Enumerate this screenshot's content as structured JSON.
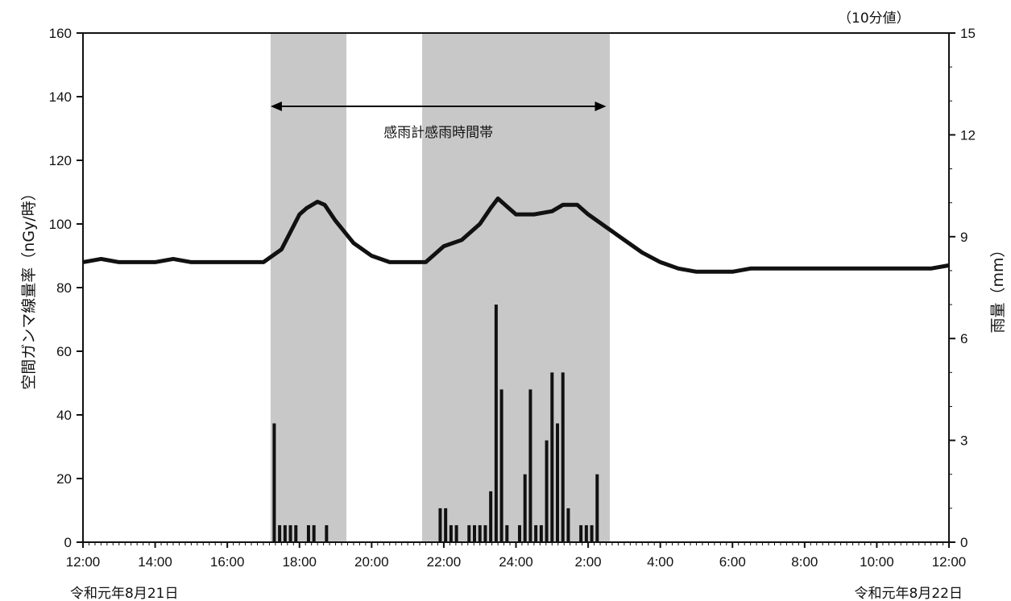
{
  "chart_data": {
    "type": "bar+line",
    "unit_note": "（10分値）",
    "ylabel_left": "空間ガンマ線量率（nGy/時）",
    "ylabel_right": "雨量（mm）",
    "left_axis": {
      "min": 0,
      "max": 160,
      "ticks": [
        "0",
        "20",
        "40",
        "60",
        "80",
        "100",
        "120",
        "140",
        "160"
      ]
    },
    "right_axis": {
      "min": 0,
      "max": 15,
      "ticks": [
        "0",
        "3",
        "6",
        "9",
        "12",
        "15"
      ]
    },
    "x_axis": {
      "start_hour": 12,
      "end_hour": 36,
      "tick_labels": [
        "12:00",
        "14:00",
        "16:00",
        "18:00",
        "20:00",
        "22:00",
        "24:00",
        "2:00",
        "4:00",
        "6:00",
        "8:00",
        "10:00",
        "12:00"
      ],
      "date_start": "令和元年8月21日",
      "date_end": "令和元年8月22日"
    },
    "annotation": {
      "text": "感雨計感雨時間帯",
      "from_hour": 17.2,
      "to_hour": 26.5
    },
    "shaded_bands": [
      {
        "from_hour": 17.2,
        "to_hour": 19.3
      },
      {
        "from_hour": 21.4,
        "to_hour": 26.6
      }
    ],
    "line_series": {
      "x_hours": [
        12,
        12.5,
        13,
        13.5,
        14,
        14.5,
        15,
        15.5,
        16,
        16.5,
        17,
        17.5,
        18,
        18.2,
        18.5,
        18.7,
        19,
        19.5,
        20,
        20.5,
        21,
        21.5,
        22,
        22.5,
        23,
        23.3,
        23.5,
        23.8,
        24,
        24.5,
        25,
        25.3,
        25.7,
        26,
        26.5,
        27,
        27.5,
        28,
        28.5,
        29,
        29.5,
        30,
        30.5,
        31,
        31.5,
        32,
        32.5,
        33,
        33.5,
        34,
        34.5,
        35,
        35.5,
        36
      ],
      "values": [
        88,
        89,
        88,
        88,
        88,
        89,
        88,
        88,
        88,
        88,
        88,
        92,
        103,
        105,
        107,
        106,
        101,
        94,
        90,
        88,
        88,
        88,
        93,
        95,
        100,
        105,
        108,
        105,
        103,
        103,
        104,
        106,
        106,
        103,
        99,
        95,
        91,
        88,
        86,
        85,
        85,
        85,
        86,
        86,
        86,
        86,
        86,
        86,
        86,
        86,
        86,
        86,
        86,
        87
      ]
    },
    "rain_bars": [
      {
        "hour": 17.3,
        "mm": 3.5
      },
      {
        "hour": 17.45,
        "mm": 0.5
      },
      {
        "hour": 17.6,
        "mm": 0.5
      },
      {
        "hour": 17.75,
        "mm": 0.5
      },
      {
        "hour": 17.9,
        "mm": 0.5
      },
      {
        "hour": 18.25,
        "mm": 0.5
      },
      {
        "hour": 18.4,
        "mm": 0.5
      },
      {
        "hour": 18.75,
        "mm": 0.5
      },
      {
        "hour": 21.9,
        "mm": 1.0
      },
      {
        "hour": 22.05,
        "mm": 1.0
      },
      {
        "hour": 22.2,
        "mm": 0.5
      },
      {
        "hour": 22.35,
        "mm": 0.5
      },
      {
        "hour": 22.7,
        "mm": 0.5
      },
      {
        "hour": 22.85,
        "mm": 0.5
      },
      {
        "hour": 23.0,
        "mm": 0.5
      },
      {
        "hour": 23.15,
        "mm": 0.5
      },
      {
        "hour": 23.3,
        "mm": 1.5
      },
      {
        "hour": 23.45,
        "mm": 7.0
      },
      {
        "hour": 23.6,
        "mm": 4.5
      },
      {
        "hour": 23.75,
        "mm": 0.5
      },
      {
        "hour": 24.1,
        "mm": 0.5
      },
      {
        "hour": 24.25,
        "mm": 2.0
      },
      {
        "hour": 24.4,
        "mm": 4.5
      },
      {
        "hour": 24.55,
        "mm": 0.5
      },
      {
        "hour": 24.7,
        "mm": 0.5
      },
      {
        "hour": 24.85,
        "mm": 3.0
      },
      {
        "hour": 25.0,
        "mm": 5.0
      },
      {
        "hour": 25.15,
        "mm": 3.5
      },
      {
        "hour": 25.3,
        "mm": 5.0
      },
      {
        "hour": 25.45,
        "mm": 1.0
      },
      {
        "hour": 25.8,
        "mm": 0.5
      },
      {
        "hour": 25.95,
        "mm": 0.5
      },
      {
        "hour": 26.1,
        "mm": 0.5
      },
      {
        "hour": 26.25,
        "mm": 2.0
      }
    ]
  }
}
